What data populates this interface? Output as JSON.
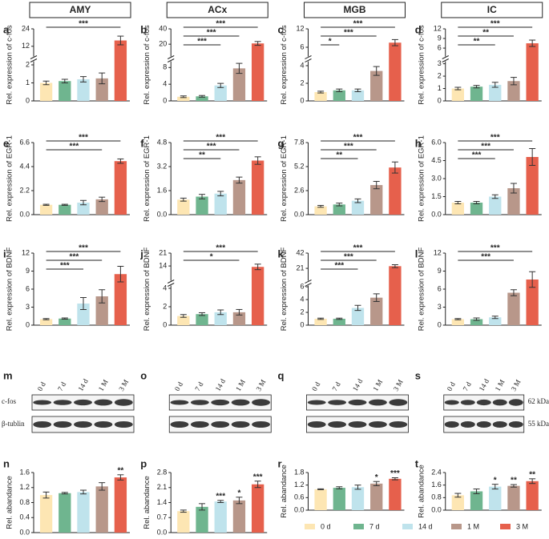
{
  "columns": [
    "AMY",
    "ACx",
    "MGB",
    "IC"
  ],
  "legend": {
    "names": [
      "0 d",
      "7 d",
      "14 d",
      "1 M",
      "3 M"
    ],
    "colors": [
      "#fde6b3",
      "#6fb58f",
      "#bfe3ec",
      "#b8978a",
      "#e6604c"
    ]
  },
  "chart_data": [
    {
      "type": "bar",
      "letter": "a",
      "ylabel": "Rel. expression of c-fos",
      "values": [
        1.0,
        1.1,
        1.2,
        1.25,
        16
      ],
      "errors": [
        0.1,
        0.1,
        0.15,
        0.3,
        3
      ],
      "ylim": [
        0,
        24
      ],
      "ybreak": [
        2.2,
        5
      ],
      "yticks": [
        0,
        1,
        2,
        12,
        24
      ],
      "brackets": [
        {
          "from": 0,
          "to": 4,
          "label": "***"
        }
      ]
    },
    {
      "type": "bar",
      "letter": "b",
      "ylabel": "Rel. expression of c-fos",
      "values": [
        1.0,
        1.1,
        3.7,
        7.8,
        21
      ],
      "errors": [
        0.2,
        0.2,
        0.5,
        1.2,
        2.5
      ],
      "ylim": [
        0,
        40
      ],
      "ybreak": [
        9.5,
        4
      ],
      "yticks": [
        0,
        4,
        8,
        20,
        40
      ],
      "brackets": [
        {
          "from": 0,
          "to": 4,
          "label": "***"
        },
        {
          "from": 0,
          "to": 3,
          "label": "***"
        },
        {
          "from": 0,
          "to": 2,
          "label": "***"
        }
      ]
    },
    {
      "type": "bar",
      "letter": "c",
      "ylabel": "Rel. expression of c-fos",
      "values": [
        1.0,
        1.2,
        1.2,
        3.4,
        7.5
      ],
      "errors": [
        0.1,
        0.15,
        0.15,
        0.5,
        1
      ],
      "ylim": [
        0,
        12
      ],
      "ybreak": [
        4.5,
        3
      ],
      "yticks": [
        0,
        2,
        4,
        6,
        12
      ],
      "brackets": [
        {
          "from": 0,
          "to": 4,
          "label": "***"
        },
        {
          "from": 0,
          "to": 3,
          "label": "***"
        },
        {
          "from": 0,
          "to": 1,
          "label": "*"
        }
      ]
    },
    {
      "type": "bar",
      "letter": "d",
      "ylabel": "Rel. expression of c-fos",
      "values": [
        1.0,
        1.15,
        1.3,
        1.6,
        7.5
      ],
      "errors": [
        0.1,
        0.1,
        0.2,
        0.3,
        1
      ],
      "ylim": [
        0,
        12
      ],
      "ybreak": [
        3.2,
        3.4
      ],
      "yticks": [
        0,
        1,
        2,
        3,
        6,
        9,
        12
      ],
      "brackets": [
        {
          "from": 0,
          "to": 4,
          "label": "***"
        },
        {
          "from": 0,
          "to": 3,
          "label": "**"
        },
        {
          "from": 0,
          "to": 2,
          "label": "**"
        }
      ]
    },
    {
      "type": "bar",
      "letter": "e",
      "ylabel": "Rel. expression of EGR-1",
      "values": [
        0.9,
        0.9,
        1.1,
        1.4,
        4.9
      ],
      "errors": [
        0.05,
        0.05,
        0.2,
        0.2,
        0.2
      ],
      "ylim": [
        0,
        6.6
      ],
      "yticks": [
        {
          "value": 0,
          "label": "0.0"
        },
        2.2,
        4.4,
        6.6
      ],
      "brackets": [
        {
          "from": 0,
          "to": 4,
          "label": "***"
        },
        {
          "from": 0,
          "to": 3,
          "label": "***"
        }
      ]
    },
    {
      "type": "bar",
      "letter": "f",
      "ylabel": "Rel. expression of EGR-1",
      "values": [
        1.0,
        1.2,
        1.4,
        2.3,
        3.6
      ],
      "errors": [
        0.1,
        0.15,
        0.15,
        0.2,
        0.25
      ],
      "ylim": [
        0,
        4.8
      ],
      "yticks": [
        {
          "value": 0,
          "label": "0.0"
        },
        1.6,
        3.2,
        4.8
      ],
      "brackets": [
        {
          "from": 0,
          "to": 4,
          "label": "***"
        },
        {
          "from": 0,
          "to": 3,
          "label": "***"
        },
        {
          "from": 0,
          "to": 2,
          "label": "**"
        }
      ]
    },
    {
      "type": "bar",
      "letter": "g",
      "ylabel": "Rel. expression of EGR-1",
      "values": [
        0.9,
        1.1,
        1.5,
        3.2,
        5.1
      ],
      "errors": [
        0.1,
        0.15,
        0.2,
        0.4,
        0.6
      ],
      "ylim": [
        0,
        7.8
      ],
      "yticks": [
        {
          "value": 0,
          "label": "0.0"
        },
        2.6,
        5.2,
        7.8
      ],
      "brackets": [
        {
          "from": 0,
          "to": 4,
          "label": "***"
        },
        {
          "from": 0,
          "to": 3,
          "label": "***"
        },
        {
          "from": 0,
          "to": 2,
          "label": "**"
        }
      ]
    },
    {
      "type": "bar",
      "letter": "h",
      "ylabel": "Rel. expression of EGR-1",
      "values": [
        1.0,
        1.0,
        1.5,
        2.2,
        4.8
      ],
      "errors": [
        0.1,
        0.1,
        0.15,
        0.4,
        0.7
      ],
      "ylim": [
        0,
        6
      ],
      "yticks": [
        {
          "value": 0,
          "label": "0.0"
        },
        1.5,
        {
          "value": 3,
          "label": "3.0"
        },
        4.5,
        {
          "value": 6,
          "label": "6.0"
        }
      ],
      "brackets": [
        {
          "from": 0,
          "to": 4,
          "label": "***"
        },
        {
          "from": 0,
          "to": 3,
          "label": "***"
        },
        {
          "from": 0,
          "to": 2,
          "label": "***"
        }
      ]
    },
    {
      "type": "bar",
      "letter": "i",
      "ylabel": "Rel. expression of BDNF",
      "values": [
        1.0,
        1.1,
        3.6,
        4.8,
        8.5
      ],
      "errors": [
        0.1,
        0.1,
        1.0,
        1.1,
        1.3
      ],
      "ylim": [
        0,
        12
      ],
      "yticks": [
        0,
        3,
        6,
        9,
        12
      ],
      "brackets": [
        {
          "from": 0,
          "to": 4,
          "label": "***"
        },
        {
          "from": 0,
          "to": 3,
          "label": "***"
        },
        {
          "from": 0,
          "to": 2,
          "label": "***"
        }
      ]
    },
    {
      "type": "bar",
      "letter": "j",
      "ylabel": "Rel. expression of BDNF",
      "values": [
        1.0,
        1.2,
        1.4,
        1.4,
        13.5
      ],
      "errors": [
        0.15,
        0.15,
        0.25,
        0.3,
        1.5
      ],
      "ylim": [
        0,
        21
      ],
      "ybreak": [
        4.3,
        6
      ],
      "yticks": [
        0,
        2,
        4,
        14,
        21
      ],
      "brackets": [
        {
          "from": 0,
          "to": 4,
          "label": "***"
        },
        {
          "from": 0,
          "to": 3,
          "label": "*"
        }
      ]
    },
    {
      "type": "bar",
      "letter": "k",
      "ylabel": "Rel. expression of BDNF",
      "values": [
        1.0,
        1.0,
        2.7,
        4.3,
        24
      ],
      "errors": [
        0.1,
        0.1,
        0.4,
        0.6,
        2
      ],
      "ylim": [
        0,
        42
      ],
      "ybreak": [
        6.2,
        4
      ],
      "yticks": [
        0,
        2,
        4,
        6,
        21,
        42
      ],
      "brackets": [
        {
          "from": 0,
          "to": 4,
          "label": "***"
        },
        {
          "from": 0,
          "to": 3,
          "label": "***"
        },
        {
          "from": 0,
          "to": 2,
          "label": "***"
        }
      ]
    },
    {
      "type": "bar",
      "letter": "l",
      "ylabel": "Rel. expression of BDNF",
      "values": [
        1.0,
        1.0,
        1.3,
        5.4,
        7.6
      ],
      "errors": [
        0.1,
        0.2,
        0.2,
        0.5,
        1.3
      ],
      "ylim": [
        0,
        12
      ],
      "yticks": [
        0,
        3,
        6,
        9,
        12
      ],
      "brackets": [
        {
          "from": 0,
          "to": 4,
          "label": "***"
        },
        {
          "from": 0,
          "to": 3,
          "label": "***"
        }
      ]
    },
    {
      "type": "bar",
      "letter": "n",
      "ylabel": "Rel. abandance",
      "values": [
        1.0,
        1.05,
        1.08,
        1.23,
        1.47
      ],
      "errors": [
        0.08,
        0.02,
        0.05,
        0.1,
        0.07
      ],
      "ylim": [
        0,
        1.6
      ],
      "yticks": [
        {
          "value": 0,
          "label": "0.0"
        },
        0.4,
        0.8,
        1.2,
        1.6
      ],
      "sig": [
        null,
        null,
        null,
        null,
        "**"
      ]
    },
    {
      "type": "bar",
      "letter": "p",
      "ylabel": "Rel. abandance",
      "values": [
        1.0,
        1.2,
        1.45,
        1.5,
        2.25
      ],
      "errors": [
        0.05,
        0.15,
        0.05,
        0.15,
        0.15
      ],
      "ylim": [
        0,
        2.8
      ],
      "yticks": [
        {
          "value": 0,
          "label": "0.0"
        },
        0.7,
        1.4,
        2.1,
        2.8
      ],
      "sig": [
        null,
        null,
        "***",
        "*",
        "***"
      ]
    },
    {
      "type": "bar",
      "letter": "r",
      "ylabel": "Rel. abandance",
      "values": [
        1.0,
        1.07,
        1.1,
        1.27,
        1.5
      ],
      "errors": [
        0.02,
        0.05,
        0.1,
        0.1,
        0.05
      ],
      "ylim": [
        0,
        1.8
      ],
      "yticks": [
        {
          "value": 0,
          "label": "0.0"
        },
        0.6,
        1.2,
        1.8
      ],
      "sig": [
        null,
        null,
        null,
        "*",
        "***"
      ]
    },
    {
      "type": "bar",
      "letter": "t",
      "ylabel": "Rel. abandance",
      "values": [
        0.95,
        1.2,
        1.5,
        1.55,
        1.85
      ],
      "errors": [
        0.12,
        0.15,
        0.15,
        0.08,
        0.15
      ],
      "ylim": [
        0,
        2.4
      ],
      "yticks": [
        {
          "value": 0,
          "label": "0.0"
        },
        0.8,
        1.6,
        2.4
      ],
      "sig": [
        null,
        null,
        "*",
        "**",
        "**"
      ]
    }
  ],
  "blots": [
    {
      "letter": "m",
      "lanes": [
        "0 d",
        "7 d",
        "14 d",
        "1 M",
        "3 M"
      ],
      "rows": [
        "c-fos",
        "β-tublin"
      ]
    },
    {
      "letter": "o",
      "lanes": [
        "0 d",
        "7 d",
        "14 d",
        "1 M",
        "3 M"
      ]
    },
    {
      "letter": "q",
      "lanes": [
        "0 d",
        "7 d",
        "14 d",
        "1 M",
        "3 M"
      ]
    },
    {
      "letter": "s",
      "lanes": [
        "0 d",
        "7 d",
        "14 d",
        "1 M",
        "3 M"
      ],
      "markers": [
        "62 kDa",
        "55 kDa"
      ]
    }
  ]
}
